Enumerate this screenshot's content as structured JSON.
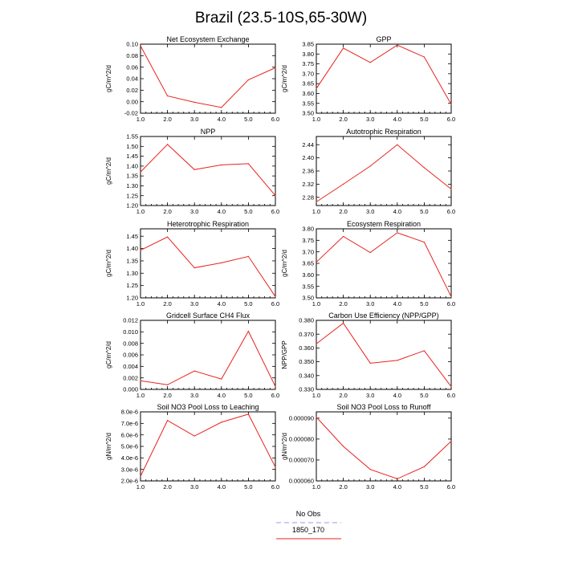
{
  "title": "Brazil (23.5-10S,65-30W)",
  "series_colors": {
    "model": "#e8231f",
    "obs": "#9a9af0"
  },
  "legend": {
    "entries": [
      {
        "label": "No Obs",
        "color": "#9a9af0",
        "style": "dashed"
      },
      {
        "label": "1850_170",
        "color": "#e8231f",
        "style": "solid"
      }
    ]
  },
  "chart_data": [
    {
      "type": "line",
      "title": "Net Ecosystem Exchange",
      "ylabel": "gC/m^2/d",
      "x": [
        1,
        2,
        3,
        4,
        5,
        6
      ],
      "xlim": [
        1,
        6
      ],
      "xticks": [
        "1.0",
        "2.0",
        "3.0",
        "4.0",
        "5.0",
        "6.0"
      ],
      "ylim": [
        -0.02,
        0.1
      ],
      "yticks": [
        -0.02,
        0.0,
        0.02,
        0.04,
        0.06,
        0.08,
        0.1
      ],
      "ytick_labels": [
        "-0.02",
        "0.00",
        "0.02",
        "0.04",
        "0.06",
        "0.08",
        "0.10"
      ],
      "series": [
        {
          "name": "1850_170",
          "values": [
            0.097,
            0.01,
            -0.001,
            -0.01,
            0.038,
            0.059
          ]
        }
      ]
    },
    {
      "type": "line",
      "title": "GPP",
      "ylabel": "gC/m^2/d",
      "x": [
        1,
        2,
        3,
        4,
        5,
        6
      ],
      "xlim": [
        1,
        6
      ],
      "xticks": [
        "1.0",
        "2.0",
        "3.0",
        "4.0",
        "5.0",
        "6.0"
      ],
      "ylim": [
        3.5,
        3.85
      ],
      "yticks": [
        3.5,
        3.55,
        3.6,
        3.65,
        3.7,
        3.75,
        3.8,
        3.85
      ],
      "ytick_labels": [
        "3.50",
        "3.55",
        "3.60",
        "3.65",
        "3.70",
        "3.75",
        "3.80",
        "3.85"
      ],
      "series": [
        {
          "name": "1850_170",
          "values": [
            3.625,
            3.83,
            3.757,
            3.845,
            3.785,
            3.545
          ]
        }
      ]
    },
    {
      "type": "line",
      "title": "NPP",
      "ylabel": "gC/m^2/d",
      "x": [
        1,
        2,
        3,
        4,
        5,
        6
      ],
      "xlim": [
        1,
        6
      ],
      "xticks": [
        "1.0",
        "2.0",
        "3.0",
        "4.0",
        "5.0",
        "6.0"
      ],
      "ylim": [
        1.2,
        1.55
      ],
      "yticks": [
        1.2,
        1.25,
        1.3,
        1.35,
        1.4,
        1.45,
        1.5,
        1.55
      ],
      "ytick_labels": [
        "1.20",
        "1.25",
        "1.30",
        "1.35",
        "1.40",
        "1.45",
        "1.50",
        "1.55"
      ],
      "series": [
        {
          "name": "1850_170",
          "values": [
            1.37,
            1.51,
            1.382,
            1.406,
            1.412,
            1.25
          ]
        }
      ]
    },
    {
      "type": "line",
      "title": "Autotrophic Respiration",
      "ylabel": "",
      "x": [
        1,
        2,
        3,
        4,
        5,
        6
      ],
      "xlim": [
        1,
        6
      ],
      "xticks": [
        "1.0",
        "2.0",
        "3.0",
        "4.0",
        "5.0",
        "6.0"
      ],
      "ylim": [
        2.255,
        2.465
      ],
      "yticks": [
        2.28,
        2.32,
        2.36,
        2.4,
        2.44
      ],
      "ytick_labels": [
        "2.28",
        "2.32",
        "2.36",
        "2.40",
        "2.44"
      ],
      "series": [
        {
          "name": "1850_170",
          "values": [
            2.266,
            2.32,
            2.375,
            2.44,
            2.37,
            2.305
          ]
        }
      ]
    },
    {
      "type": "line",
      "title": "Heterotrophic Respiration",
      "ylabel": "gC/m^2/d",
      "x": [
        1,
        2,
        3,
        4,
        5,
        6
      ],
      "xlim": [
        1,
        6
      ],
      "xticks": [
        "1.0",
        "2.0",
        "3.0",
        "4.0",
        "5.0",
        "6.0"
      ],
      "ylim": [
        1.2,
        1.48
      ],
      "yticks": [
        1.2,
        1.25,
        1.3,
        1.35,
        1.4,
        1.45
      ],
      "ytick_labels": [
        "1.20",
        "1.25",
        "1.30",
        "1.35",
        "1.40",
        "1.45"
      ],
      "series": [
        {
          "name": "1850_170",
          "values": [
            1.393,
            1.447,
            1.322,
            1.342,
            1.368,
            1.205
          ]
        }
      ]
    },
    {
      "type": "line",
      "title": "Ecosystem Respiration",
      "ylabel": "gC/m^2/d",
      "x": [
        1,
        2,
        3,
        4,
        5,
        6
      ],
      "xlim": [
        1,
        6
      ],
      "xticks": [
        "1.0",
        "2.0",
        "3.0",
        "4.0",
        "5.0",
        "6.0"
      ],
      "ylim": [
        3.5,
        3.8
      ],
      "yticks": [
        3.5,
        3.55,
        3.6,
        3.65,
        3.7,
        3.75,
        3.8
      ],
      "ytick_labels": [
        "3.50",
        "3.55",
        "3.60",
        "3.65",
        "3.70",
        "3.75",
        "3.80"
      ],
      "series": [
        {
          "name": "1850_170",
          "values": [
            3.655,
            3.767,
            3.697,
            3.783,
            3.742,
            3.505
          ]
        }
      ]
    },
    {
      "type": "line",
      "title": "Gridcell Surface CH4 Flux",
      "ylabel": "gC/m^2/d",
      "x": [
        1,
        2,
        3,
        4,
        5,
        6
      ],
      "xlim": [
        1,
        6
      ],
      "xticks": [
        "1.0",
        "2.0",
        "3.0",
        "4.0",
        "5.0",
        "6.0"
      ],
      "ylim": [
        0.0,
        0.012
      ],
      "yticks": [
        0.0,
        0.002,
        0.004,
        0.006,
        0.008,
        0.01,
        0.012
      ],
      "ytick_labels": [
        "0.000",
        "0.002",
        "0.004",
        "0.006",
        "0.008",
        "0.010",
        "0.012"
      ],
      "series": [
        {
          "name": "1850_170",
          "values": [
            0.0015,
            0.0008,
            0.0032,
            0.0018,
            0.0101,
            0.0005
          ]
        }
      ]
    },
    {
      "type": "line",
      "title": "Carbon Use Efficiency (NPP/GPP)",
      "ylabel": "NPP/GPP",
      "x": [
        1,
        2,
        3,
        4,
        5,
        6
      ],
      "xlim": [
        1,
        6
      ],
      "xticks": [
        "1.0",
        "2.0",
        "3.0",
        "4.0",
        "5.0",
        "6.0"
      ],
      "ylim": [
        0.33,
        0.38
      ],
      "yticks": [
        0.33,
        0.34,
        0.35,
        0.36,
        0.37,
        0.38
      ],
      "ytick_labels": [
        "0.330",
        "0.340",
        "0.350",
        "0.360",
        "0.370",
        "0.380"
      ],
      "series": [
        {
          "name": "1850_170",
          "values": [
            0.363,
            0.378,
            0.349,
            0.351,
            0.358,
            0.332
          ]
        }
      ]
    },
    {
      "type": "line",
      "title": "Soil NO3 Pool Loss to Leaching",
      "ylabel": "gN/m^2/d",
      "x": [
        1,
        2,
        3,
        4,
        5,
        6
      ],
      "xlim": [
        1,
        6
      ],
      "xticks": [
        "1.0",
        "2.0",
        "3.0",
        "4.0",
        "5.0",
        "6.0"
      ],
      "ylim": [
        2e-06,
        8e-06
      ],
      "yticks": [
        2e-06,
        3e-06,
        4e-06,
        5e-06,
        6e-06,
        7e-06,
        8e-06
      ],
      "ytick_labels": [
        "2.0e-6",
        "3.0e-6",
        "4.0e-6",
        "5.0e-6",
        "6.0e-6",
        "7.0e-6",
        "8.0e-6"
      ],
      "series": [
        {
          "name": "1850_170",
          "values": [
            2.4e-06,
            7.25e-06,
            5.9e-06,
            7.1e-06,
            7.8e-06,
            3.2e-06
          ]
        }
      ]
    },
    {
      "type": "line",
      "title": "Soil NO3 Pool Loss to Runoff",
      "ylabel": "gN/m^2/d",
      "x": [
        1,
        2,
        3,
        4,
        5,
        6
      ],
      "xlim": [
        1,
        6
      ],
      "xticks": [
        "1.0",
        "2.0",
        "3.0",
        "4.0",
        "5.0",
        "6.0"
      ],
      "ylim": [
        6e-05,
        9.3e-05
      ],
      "yticks": [
        6e-05,
        7e-05,
        8e-05,
        9e-05
      ],
      "ytick_labels": [
        "0.000060",
        "0.000070",
        "0.000080",
        "0.000090"
      ],
      "series": [
        {
          "name": "1850_170",
          "values": [
            9.05e-05,
            7.65e-05,
            6.55e-05,
            6.1e-05,
            6.68e-05,
            7.9e-05
          ]
        }
      ]
    }
  ]
}
